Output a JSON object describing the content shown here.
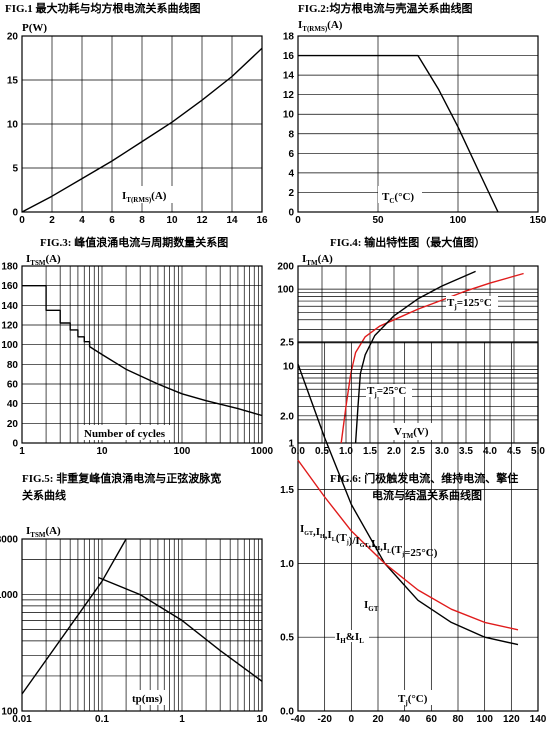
{
  "chart_data": [
    {
      "id": "fig1",
      "type": "line",
      "title": "FIG.1  最大功耗与均方根电流关系曲线图",
      "ylabel": "P(W)",
      "xlabel_main": "I",
      "xlabel_sub": "T(RMS)",
      "xlabel_tail": "(A)",
      "xlim": [
        0,
        16
      ],
      "ylim": [
        0,
        20
      ],
      "xticks": [
        0,
        2,
        4,
        6,
        8,
        10,
        12,
        14,
        16
      ],
      "yticks": [
        0,
        5,
        10,
        15,
        20
      ],
      "grid": true,
      "series": [
        {
          "color": "#000000",
          "x": [
            0,
            2,
            4,
            6,
            8,
            10,
            12,
            14,
            16
          ],
          "y": [
            0,
            1.8,
            3.8,
            5.8,
            8.0,
            10.2,
            12.7,
            15.4,
            18.6
          ]
        }
      ]
    },
    {
      "id": "fig2",
      "type": "line",
      "title": "FIG.2:均方根电流与壳温关系曲线图",
      "ylabel_main": "I",
      "ylabel_sub": "T(RMS)",
      "ylabel_tail": "(A)",
      "xlabel_main": "T",
      "xlabel_sub": "C",
      "xlabel_tail": "(°C)",
      "xlim": [
        0,
        150
      ],
      "ylim": [
        0,
        18
      ],
      "xticks": [
        0,
        50,
        100,
        150
      ],
      "yticks": [
        0,
        2,
        4,
        6,
        8,
        10,
        12,
        14,
        16,
        18
      ],
      "grid": true,
      "series": [
        {
          "color": "#000000",
          "x": [
            0,
            75,
            88,
            100,
            112,
            125
          ],
          "y": [
            16,
            16,
            12.5,
            8.7,
            4.5,
            0
          ]
        }
      ]
    },
    {
      "id": "fig3",
      "type": "line",
      "title": "FIG.3:  峰值浪涌电流与周期数量关系图",
      "ylabel_main": "I",
      "ylabel_sub": "TSM",
      "ylabel_tail": "(A)",
      "xlabel": "Number of cycles",
      "xscale": "log",
      "xlim": [
        1,
        1000
      ],
      "ylim": [
        0,
        180
      ],
      "xtick_labels": [
        "1",
        "10",
        "100",
        "1000"
      ],
      "yticks": [
        0,
        20,
        40,
        60,
        80,
        100,
        120,
        140,
        160,
        180
      ],
      "grid": true,
      "series": [
        {
          "color": "#000000",
          "x": [
            1,
            2,
            2,
            3,
            3,
            4,
            4,
            5,
            5,
            6,
            6,
            7,
            7,
            10,
            20,
            50,
            100,
            200,
            500,
            1000
          ],
          "y": [
            160,
            160,
            135,
            135,
            122,
            122,
            115,
            115,
            108,
            108,
            103,
            103,
            98,
            90,
            75,
            60,
            50,
            43,
            35,
            28
          ]
        }
      ]
    },
    {
      "id": "fig4",
      "type": "line",
      "title": "FIG.4:  输出特性图（最大值图）",
      "ylabel_main": "I",
      "ylabel_sub": "TM",
      "ylabel_tail": "(A)",
      "xlabel_main": "V",
      "xlabel_sub": "TM",
      "xlabel_tail": "(V)",
      "yscale": "log",
      "xlim": [
        0,
        5
      ],
      "ylim": [
        1,
        200
      ],
      "xticks": [
        0.0,
        0.5,
        1.0,
        1.5,
        2.0,
        2.5,
        3.0,
        3.5,
        4.0,
        4.5,
        5.0
      ],
      "ytick_labels": [
        "1",
        "10",
        "100",
        "200"
      ],
      "grid": true,
      "annotations": [
        {
          "main": "T",
          "sub": "j",
          "tail": "=125°C"
        },
        {
          "main": "T",
          "sub": "j",
          "tail": "=25°C"
        }
      ],
      "series": [
        {
          "name_ref": 0,
          "color": "#e01b1b",
          "x": [
            0.9,
            1.0,
            1.1,
            1.2,
            1.4,
            1.7,
            2.0,
            2.5,
            3.0,
            3.5,
            4.0,
            4.7
          ],
          "y": [
            1,
            3,
            8,
            15,
            24,
            33,
            40,
            55,
            72,
            95,
            120,
            160
          ]
        },
        {
          "name_ref": 1,
          "color": "#000000",
          "x": [
            1.2,
            1.25,
            1.3,
            1.4,
            1.6,
            2.0,
            2.5,
            3.0,
            3.7
          ],
          "y": [
            1,
            3,
            8,
            14,
            25,
            45,
            75,
            110,
            170
          ]
        }
      ]
    },
    {
      "id": "fig5",
      "type": "line",
      "title_lines": [
        "FIG.5:  非重复峰值浪涌电流与正弦波脉宽",
        "关系曲线"
      ],
      "ylabel_main": "I",
      "ylabel_sub": "TSM",
      "ylabel_tail": "(A)",
      "xlabel": "tp(ms)",
      "xscale": "log",
      "yscale": "log",
      "xlim": [
        0.01,
        10
      ],
      "ylim": [
        100,
        3000
      ],
      "xtick_labels": [
        "0.01",
        "0.1",
        "1",
        "10"
      ],
      "ytick_labels": [
        "100",
        "1000",
        "3000"
      ],
      "grid": true,
      "series": [
        {
          "color": "#000000",
          "x": [
            0.01,
            0.1,
            0.2
          ],
          "y": [
            140,
            1300,
            3000
          ]
        },
        {
          "color": "#000000",
          "x": [
            0.09,
            0.3,
            1,
            3,
            10
          ],
          "y": [
            1400,
            1000,
            600,
            330,
            180
          ]
        }
      ]
    },
    {
      "id": "fig6",
      "type": "line",
      "title_lines": [
        "FIG.6:  门极触发电流、维持电流、擎住",
        "电流与结温关系曲线图"
      ],
      "ylabel_text": "I_GT,I_H,I_L(T_j)/I_GT,I_H,I_L(T_j=25°C)",
      "ylabel_parts": [
        {
          "t": "I",
          "s": "GT"
        },
        {
          "t": ",I",
          "s": "H"
        },
        {
          "t": ",I",
          "s": "L"
        },
        {
          "t": "(T",
          "s": "j"
        },
        {
          "t": ")/I",
          "s": "GT"
        },
        {
          "t": ",I",
          "s": "H"
        },
        {
          "t": ",I",
          "s": "L"
        },
        {
          "t": "(T",
          "s": "j"
        },
        {
          "t": "=25°C)",
          "s": ""
        }
      ],
      "xlabel_main": "T",
      "xlabel_sub": "j",
      "xlabel_tail": "(°C)",
      "xlim": [
        -40,
        140
      ],
      "ylim": [
        0,
        2.5
      ],
      "xticks": [
        -40,
        -20,
        0,
        20,
        40,
        60,
        80,
        100,
        120,
        140
      ],
      "yticks": [
        0.0,
        0.5,
        1.0,
        1.5,
        2.0,
        2.5
      ],
      "grid": true,
      "annotations": [
        {
          "main": "I",
          "sub": "GT"
        },
        {
          "main": "I",
          "sub": "H",
          "tail": "&I",
          "sub2": "L"
        }
      ],
      "series": [
        {
          "name_ref": 0,
          "color": "#000000",
          "x": [
            -40,
            -20,
            0,
            25,
            50,
            75,
            100,
            125
          ],
          "y": [
            2.35,
            1.85,
            1.4,
            1.0,
            0.75,
            0.6,
            0.5,
            0.45
          ]
        },
        {
          "name_ref": 1,
          "color": "#e01b1b",
          "x": [
            -40,
            -20,
            0,
            25,
            50,
            75,
            100,
            125
          ],
          "y": [
            1.7,
            1.45,
            1.22,
            1.0,
            0.82,
            0.69,
            0.6,
            0.55
          ]
        }
      ]
    }
  ]
}
